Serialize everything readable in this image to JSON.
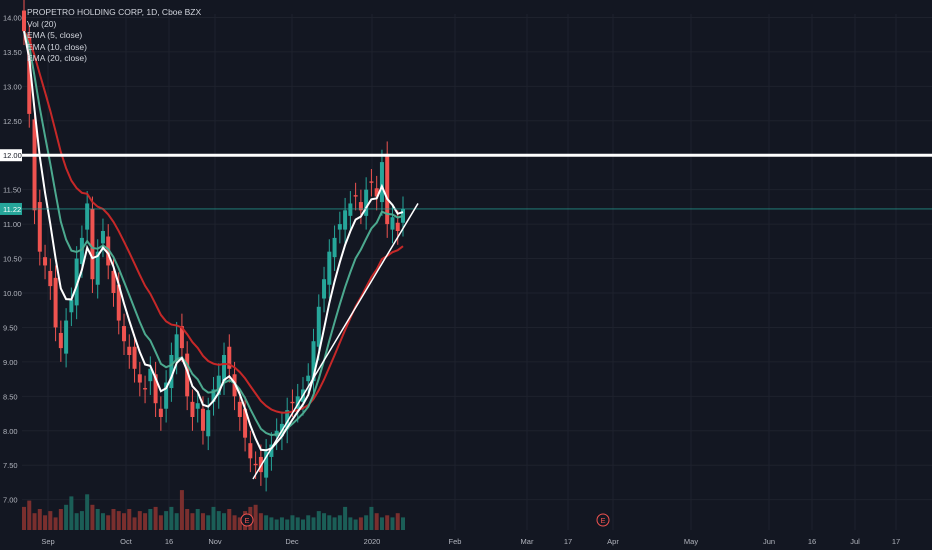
{
  "legend": {
    "title": "PROPETRO HOLDING CORP, 1D, Cboe BZX",
    "vol": "Vol (20)",
    "ema5": "EMA (5, close)",
    "ema10": "EMA (10, close)",
    "ema20": "EMA (20, close)"
  },
  "colors": {
    "background": "#131722",
    "up": "#26a69a",
    "down": "#ef5350",
    "ema5": "#ffffff",
    "ema10": "#4ca98f",
    "ema20": "#c62828",
    "resistance": "#ffffff",
    "trendline": "#ffffff"
  },
  "price_label": "11.22",
  "level_label": "12.00",
  "earnings_marker": "E",
  "chart_data": {
    "type": "candlestick",
    "ylim": [
      6.85,
      14.05
    ],
    "y_ticks": [
      "14.00",
      "13.50",
      "13.00",
      "12.50",
      "12.00",
      "11.50",
      "11.00",
      "10.50",
      "10.00",
      "9.50",
      "9.00",
      "8.50",
      "8.00",
      "7.50",
      "7.00"
    ],
    "x_labels": [
      "Sep",
      "Oct",
      "16",
      "Nov",
      "Dec",
      "2020",
      "Feb",
      "Mar",
      "17",
      "Apr",
      "May",
      "Jun",
      "16",
      "Jul",
      "17"
    ],
    "last_price": 11.22,
    "resistance_level": 12.0,
    "trendline": [
      [
        7.3,
        "2019-11-22"
      ],
      [
        10.95,
        "2020-01-10"
      ]
    ],
    "closes": [
      13.8,
      12.6,
      11.2,
      10.6,
      10.4,
      10.1,
      9.5,
      9.2,
      9.6,
      9.9,
      10.5,
      10.8,
      11.3,
      10.2,
      10.6,
      10.9,
      10.4,
      10.0,
      9.6,
      9.3,
      9.1,
      8.9,
      8.7,
      8.6,
      8.9,
      8.4,
      8.2,
      8.7,
      9.1,
      9.4,
      9.2,
      8.5,
      8.2,
      8.4,
      8.0,
      8.3,
      8.6,
      8.8,
      9.1,
      8.9,
      8.5,
      8.2,
      7.9,
      7.6,
      7.5,
      7.4,
      7.7,
      7.8,
      8.0,
      8.1,
      8.3,
      8.4,
      8.5,
      8.6,
      8.8,
      9.3,
      9.8,
      10.2,
      10.6,
      10.8,
      11.0,
      11.2,
      11.3,
      11.4,
      11.2,
      11.5,
      11.6,
      11.4,
      11.9,
      11.0,
      11.1,
      10.9,
      11.22
    ],
    "volumes": [
      0.55,
      0.7,
      0.4,
      0.5,
      0.35,
      0.45,
      0.3,
      0.5,
      0.6,
      0.8,
      0.4,
      0.45,
      0.85,
      0.6,
      0.5,
      0.4,
      0.35,
      0.5,
      0.45,
      0.4,
      0.5,
      0.3,
      0.45,
      0.4,
      0.5,
      0.55,
      0.35,
      0.45,
      0.55,
      0.4,
      0.95,
      0.5,
      0.4,
      0.5,
      0.4,
      0.35,
      0.55,
      0.45,
      0.4,
      0.5,
      0.35,
      0.3,
      0.45,
      0.55,
      0.6,
      0.4,
      0.35,
      0.3,
      0.25,
      0.3,
      0.25,
      0.35,
      0.3,
      0.25,
      0.35,
      0.3,
      0.45,
      0.4,
      0.35,
      0.3,
      0.35,
      0.55,
      0.3,
      0.25,
      0.3,
      0.35,
      0.55,
      0.4,
      0.3,
      0.35,
      0.3,
      0.4,
      0.3
    ]
  }
}
